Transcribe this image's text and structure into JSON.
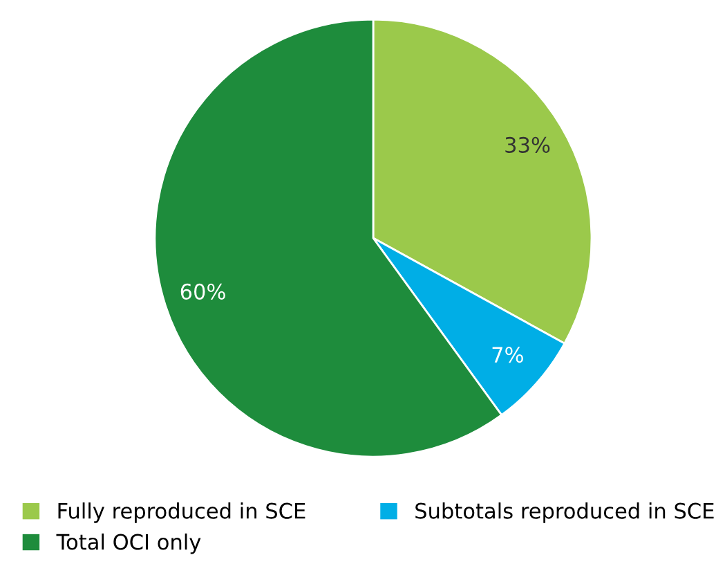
{
  "chart_data": {
    "type": "pie",
    "categories": [
      "Fully reproduced in SCE",
      "Subtotals reproduced in SCE",
      "Total OCI only"
    ],
    "values": [
      33,
      7,
      60
    ],
    "colors": [
      "#9bc94b",
      "#00aee6",
      "#1e8c3c"
    ],
    "value_labels": [
      "33%",
      "7%",
      "60%"
    ],
    "legend": "bottom"
  }
}
